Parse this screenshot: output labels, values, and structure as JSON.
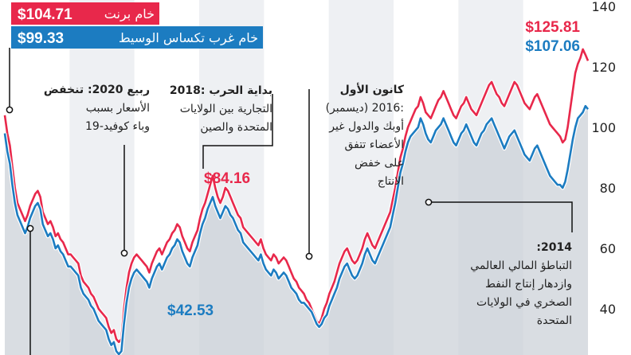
{
  "chart_data": {
    "type": "area",
    "ylim": [
      30,
      140
    ],
    "y_ticks": [
      40,
      60,
      80,
      100,
      120,
      140
    ],
    "grid": false,
    "legend_placement": "top-left",
    "legend": [
      {
        "label": "خام برنت",
        "value": "$104.71",
        "color": "#e8284b"
      },
      {
        "label": "خام غرب تكساس الوسيط",
        "value": "$99.33",
        "color": "#1c7cc1"
      }
    ],
    "callouts": {
      "brent_latest": "$125.81",
      "wti_latest": "$107.06",
      "brent_2018_peak": "$84.16",
      "wti_2016_low": "$42.53"
    },
    "annotations": [
      {
        "id": "ann-2020",
        "lines": [
          "ربيع 2020: تنخفض",
          "الأسعار بسبب",
          "وباء كوفيد-19"
        ]
      },
      {
        "id": "ann-2018",
        "lines": [
          "2018: بداية الحرب",
          "التجارية بين الولايات",
          "المتحدة والصين"
        ]
      },
      {
        "id": "ann-2016",
        "lines": [
          "كانون الأول",
          "(ديسمبر) 2016:",
          "أوبك والدول غير",
          "الأعضاء تتفق",
          "على خفض",
          "الانتاج"
        ]
      },
      {
        "id": "ann-2014",
        "lines": [
          ":2014",
          "التباطؤ المالي العالمي",
          "وازدهار إنتاج النفط",
          "الصخري في الولايات",
          "المتحدة"
        ]
      }
    ],
    "series": [
      {
        "name": "خام برنت",
        "color": "#e8284b",
        "values": [
          104,
          98,
          94,
          87,
          80,
          75,
          73,
          71,
          69,
          71,
          74,
          76,
          78,
          79,
          77,
          72,
          70,
          68,
          69,
          67,
          64,
          65,
          63,
          62,
          60,
          58,
          58,
          57,
          56,
          55,
          51,
          49,
          48,
          47,
          45,
          44,
          42,
          40,
          39,
          38,
          37,
          34,
          32,
          33,
          30,
          29,
          30,
          40,
          47,
          52,
          55,
          57,
          58,
          57,
          56,
          55,
          54,
          52,
          55,
          57,
          59,
          60,
          58,
          60,
          62,
          63,
          65,
          66,
          68,
          67,
          64,
          62,
          60,
          59,
          62,
          64,
          66,
          70,
          73,
          75,
          78,
          81,
          84,
          80,
          77,
          75,
          77,
          80,
          79,
          77,
          75,
          73,
          71,
          70,
          67,
          66,
          65,
          64,
          63,
          62,
          61,
          63,
          60,
          58,
          57,
          56,
          58,
          57,
          55,
          56,
          57,
          56,
          54,
          52,
          50,
          49,
          47,
          46,
          45,
          43,
          42,
          40,
          38,
          36,
          35,
          37,
          40,
          42,
          45,
          47,
          49,
          52,
          55,
          57,
          59,
          60,
          58,
          56,
          55,
          56,
          58,
          60,
          63,
          65,
          63,
          61,
          60,
          62,
          64,
          66,
          68,
          70,
          72,
          76,
          80,
          85,
          90,
          93,
          97,
          100,
          102,
          104,
          106,
          107,
          110,
          108,
          105,
          104,
          103,
          105,
          107,
          109,
          110,
          112,
          110,
          108,
          106,
          104,
          103,
          105,
          107,
          108,
          110,
          108,
          106,
          105,
          104,
          106,
          108,
          110,
          112,
          114,
          115,
          113,
          111,
          110,
          108,
          107,
          109,
          111,
          113,
          115,
          114,
          112,
          110,
          108,
          107,
          106,
          108,
          110,
          111,
          109,
          107,
          105,
          103,
          101,
          100,
          99,
          98,
          97,
          95,
          96,
          100,
          106,
          112,
          118,
          121,
          123,
          125.81,
          124,
          122
        ]
      },
      {
        "name": "خام غرب تكساس الوسيط",
        "color": "#1c7cc1",
        "values": [
          98,
          92,
          88,
          81,
          75,
          71,
          69,
          67,
          65,
          67,
          70,
          72,
          74,
          75,
          73,
          68,
          66,
          64,
          65,
          63,
          60,
          61,
          59,
          58,
          56,
          54,
          54,
          53,
          52,
          51,
          47,
          45,
          44,
          43,
          41,
          40,
          38,
          36,
          35,
          34,
          33,
          30,
          28,
          29,
          26,
          25,
          26,
          35,
          42,
          47,
          50,
          52,
          53,
          52,
          51,
          50,
          49,
          47,
          50,
          52,
          54,
          55,
          53,
          55,
          57,
          58,
          60,
          61,
          63,
          62,
          59,
          57,
          55,
          54,
          57,
          59,
          61,
          65,
          68,
          70,
          73,
          75,
          77,
          74,
          72,
          70,
          72,
          74,
          73,
          71,
          70,
          68,
          66,
          65,
          62,
          61,
          60,
          59,
          58,
          57,
          56,
          58,
          55,
          53,
          52,
          51,
          53,
          52,
          50,
          51,
          52,
          51,
          49,
          47,
          46,
          45,
          43,
          42,
          42,
          41,
          40,
          39,
          37,
          35,
          34,
          35,
          37,
          38,
          41,
          43,
          45,
          47,
          50,
          52,
          54,
          55,
          53,
          51,
          50,
          51,
          53,
          55,
          58,
          60,
          58,
          56,
          55,
          57,
          59,
          61,
          63,
          65,
          67,
          71,
          75,
          80,
          85,
          88,
          92,
          95,
          97,
          98,
          99,
          100,
          103,
          101,
          98,
          96,
          95,
          97,
          99,
          100,
          101,
          103,
          101,
          99,
          97,
          95,
          94,
          96,
          98,
          99,
          101,
          99,
          97,
          95,
          94,
          96,
          98,
          99,
          101,
          102,
          103,
          101,
          99,
          97,
          95,
          93,
          95,
          97,
          98,
          99,
          97,
          95,
          93,
          91,
          90,
          89,
          91,
          93,
          94,
          92,
          90,
          88,
          86,
          84,
          83,
          82,
          81,
          81,
          80,
          82,
          86,
          91,
          96,
          100,
          103,
          104,
          105,
          107.06,
          106
        ]
      }
    ]
  }
}
